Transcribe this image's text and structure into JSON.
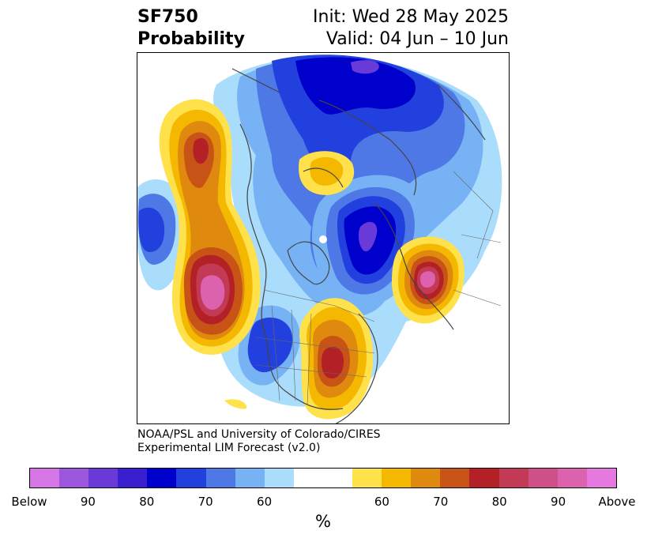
{
  "header": {
    "variable": "SF750",
    "product": "Probability",
    "init": "Init: Wed 28 May 2025",
    "valid": "Valid: 04 Jun – 10 Jun"
  },
  "credit": {
    "line1": "NOAA/PSL and University of Colorado/CIRES",
    "line2": "Experimental LIM Forecast (v2.0)"
  },
  "colorbar": {
    "unit": "%",
    "colors": [
      "#d675e6",
      "#9c56de",
      "#6a3ad8",
      "#3a1fd0",
      "#0000cd",
      "#2240dd",
      "#4d78e6",
      "#77b2f5",
      "#aadcfc",
      "#ffffff",
      "#ffffff",
      "#ffe24b",
      "#f5b800",
      "#df8a0f",
      "#c85316",
      "#b32126",
      "#c23a55",
      "#cd5088",
      "#dd62ad",
      "#e679df"
    ],
    "tick_labels": [
      "Below",
      "90",
      "80",
      "70",
      "60",
      "60",
      "70",
      "80",
      "90",
      "Above"
    ]
  },
  "map": {
    "projection": "north-polar-stereographic",
    "palette": {
      "below_60": "#aadcfc",
      "below_70": "#77b2f5",
      "below_80": "#4d78e6",
      "below_90": "#2240dd",
      "below_95": "#0000cd",
      "below_max": "#6a3ad8",
      "above_60": "#ffe24b",
      "above_70": "#f5b800",
      "above_80": "#df8a0f",
      "above_90": "#c85316",
      "above_95": "#b32126",
      "above_max": "#dd62ad"
    }
  }
}
